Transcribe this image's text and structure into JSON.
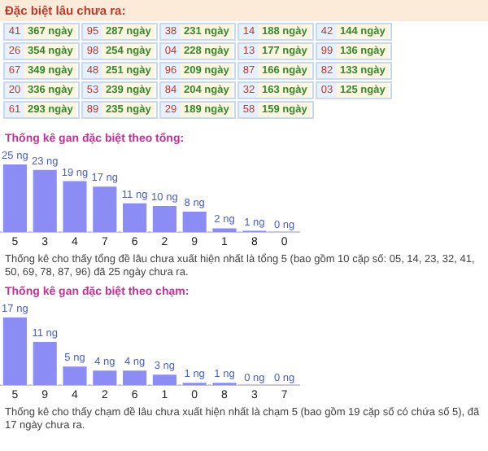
{
  "chart_data": [
    {
      "type": "other",
      "title": "Đặc biệt lâu chưa ra:",
      "annotations": [
        "41",
        "367 ngày",
        "26",
        "354 ngày",
        "67",
        "349 ngày",
        "20",
        "336 ngày",
        "61",
        "293 ngày",
        "95",
        "287 ngày",
        "98",
        "254 ngày",
        "48",
        "251 ngày",
        "53",
        "239 ngày",
        "89",
        "235 ngày",
        "38",
        "231 ngày",
        "04",
        "228 ngày",
        "96",
        "209 ngày",
        "84",
        "204 ngày",
        "29",
        "189 ngày",
        "14",
        "188 ngày",
        "13",
        "177 ngày",
        "87",
        "166 ngày",
        "32",
        "163 ngày",
        "58",
        "159 ngày",
        "42",
        "144 ngày",
        "99",
        "136 ngày",
        "82",
        "133 ngày",
        "03",
        "125 ngày"
      ]
    },
    {
      "type": "bar",
      "title": "Thống kê gan đặc biệt theo tổng:",
      "categories": [
        "5",
        "3",
        "4",
        "7",
        "6",
        "2",
        "9",
        "1",
        "8",
        "0"
      ],
      "values": [
        25,
        23,
        19,
        17,
        11,
        10,
        8,
        2,
        1,
        0
      ],
      "value_labels": [
        "25 ng",
        "23 ng",
        "19 ng",
        "17 ng",
        "11 ng",
        "10 ng",
        "8 ng",
        "2 ng",
        "1 ng",
        "0 ng"
      ],
      "color": "#8c8cf5",
      "annotations": [
        "Thống kê cho thấy tổng đề lâu chưa xuất hiện nhất là tổng 5 (bao gồm 10 cặp số: 05, 14, 23, 32, 41, 50, 69, 78, 87, 96) đã 25 ngày chưa ra."
      ]
    },
    {
      "type": "bar",
      "title": "Thống kê gan đặc biệt theo chạm:",
      "categories": [
        "5",
        "9",
        "4",
        "2",
        "6",
        "1",
        "0",
        "8",
        "3",
        "7"
      ],
      "values": [
        17,
        11,
        5,
        4,
        4,
        3,
        1,
        1,
        0,
        0
      ],
      "value_labels": [
        "17 ng",
        "11 ng",
        "5 ng",
        "4 ng",
        "4 ng",
        "3 ng",
        "1 ng",
        "1 ng",
        "0 ng",
        "0 ng"
      ],
      "color": "#8c8cf5",
      "annotations": [
        "Thống kê cho thấy chạm đề lâu chưa xuất hiện nhất là chạm 5 (bao gồm 19 cặp số có chứa số 5), đã 17 ngày chưa ra."
      ]
    }
  ]
}
